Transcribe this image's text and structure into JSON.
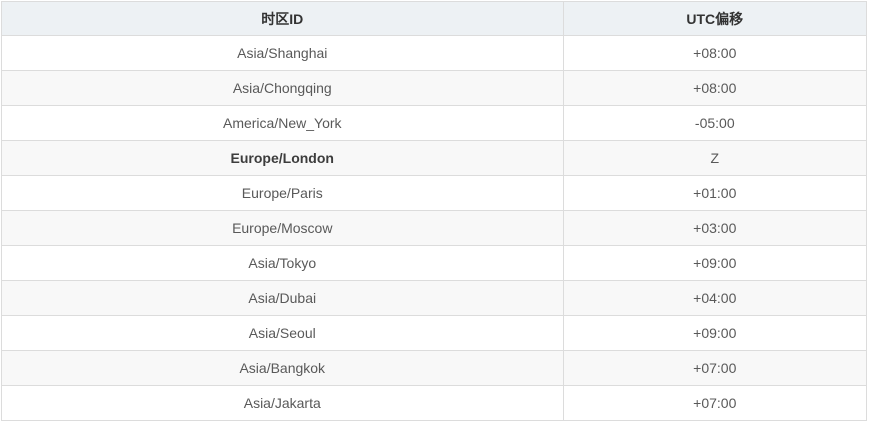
{
  "chart_data": {
    "type": "table",
    "title": "",
    "columns": [
      "时区ID",
      "UTC偏移"
    ],
    "rows": [
      [
        "Asia/Shanghai",
        "+08:00"
      ],
      [
        "Asia/Chongqing",
        "+08:00"
      ],
      [
        "America/New_York",
        "-05:00"
      ],
      [
        "Europe/London",
        "Z"
      ],
      [
        "Europe/Paris",
        "+01:00"
      ],
      [
        "Europe/Moscow",
        "+03:00"
      ],
      [
        "Asia/Tokyo",
        "+09:00"
      ],
      [
        "Asia/Dubai",
        "+04:00"
      ],
      [
        "Asia/Seoul",
        "+09:00"
      ],
      [
        "Asia/Bangkok",
        "+07:00"
      ],
      [
        "Asia/Jakarta",
        "+07:00"
      ]
    ],
    "highlighted_row": "Europe/London",
    "layout": {
      "zebra_striping": true,
      "text_align": "center",
      "column_split_percent": 64.8
    }
  },
  "colors": {
    "header_bg": "#edf1f4",
    "stripe_bg": "#f8f8f8",
    "row_bg": "#ffffff",
    "border": "#dcdcdc",
    "header_text": "#333333",
    "body_text": "#595959",
    "highlight_text": "#3d3d3d"
  }
}
